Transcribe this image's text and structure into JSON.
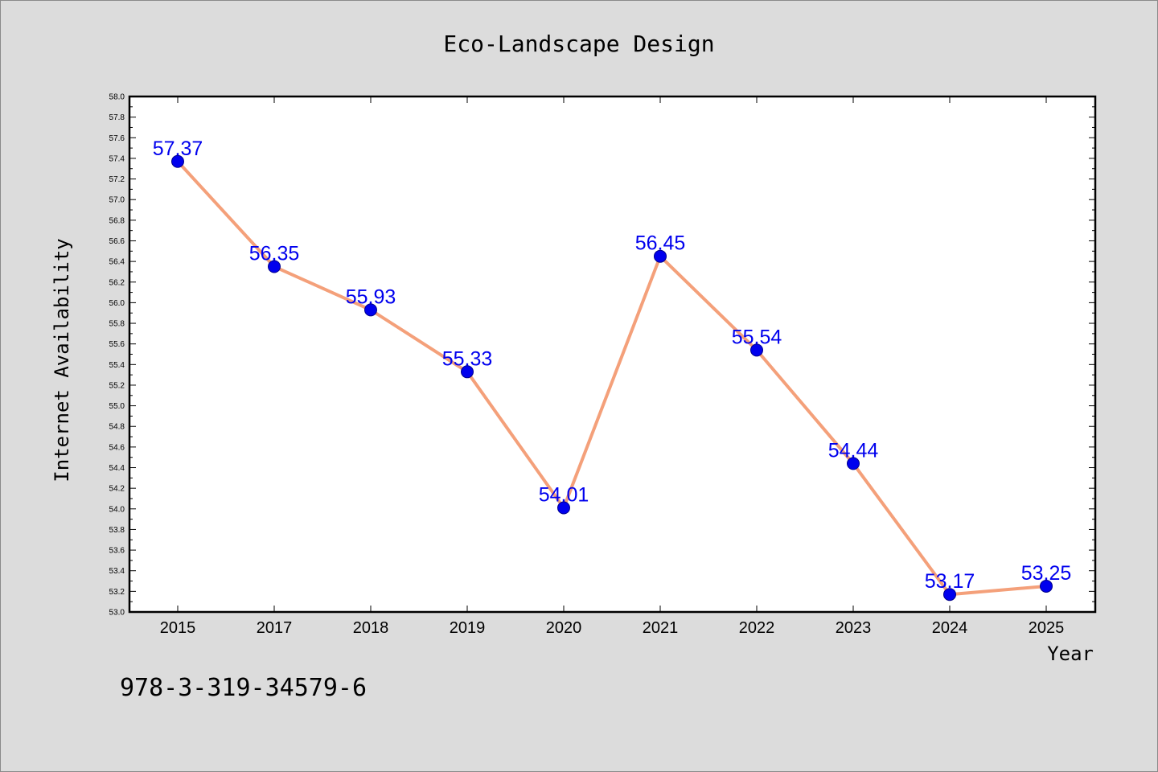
{
  "chart_data": {
    "type": "line",
    "title": "Eco-Landscape Design",
    "xlabel": "Year",
    "ylabel": "Internet Availability",
    "categories": [
      "2015",
      "2017",
      "2018",
      "2019",
      "2020",
      "2021",
      "2022",
      "2023",
      "2024",
      "2025"
    ],
    "series": [
      {
        "values": [
          57.37,
          56.35,
          55.93,
          55.33,
          54.01,
          56.45,
          55.54,
          54.44,
          53.17,
          53.25
        ],
        "labels": [
          "57.37",
          "56.35",
          "55.93",
          "55.33",
          "54.01",
          "56.45",
          "55.54",
          "54.44",
          "53.17",
          "53.25"
        ],
        "line_color": "#f4a07a",
        "marker_color": "#0000ee"
      }
    ],
    "ylim": [
      53.0,
      58.0
    ],
    "y_ticks": [
      "53.0",
      "53.2",
      "53.4",
      "53.6",
      "53.8",
      "54.0",
      "54.2",
      "54.4",
      "54.6",
      "54.8",
      "55.0",
      "55.2",
      "55.4",
      "55.6",
      "55.8",
      "56.0",
      "56.2",
      "56.4",
      "56.6",
      "56.8",
      "57.0",
      "57.2",
      "57.4",
      "57.6",
      "57.8",
      "58.0"
    ],
    "grid": false,
    "legend": "none"
  },
  "footer_text": "978-3-319-34579-6",
  "colors": {
    "background": "#dcdcdc",
    "plot_background": "#ffffff",
    "line": "#f4a07a",
    "marker": "#0000ee",
    "data_label": "#0000ee"
  }
}
